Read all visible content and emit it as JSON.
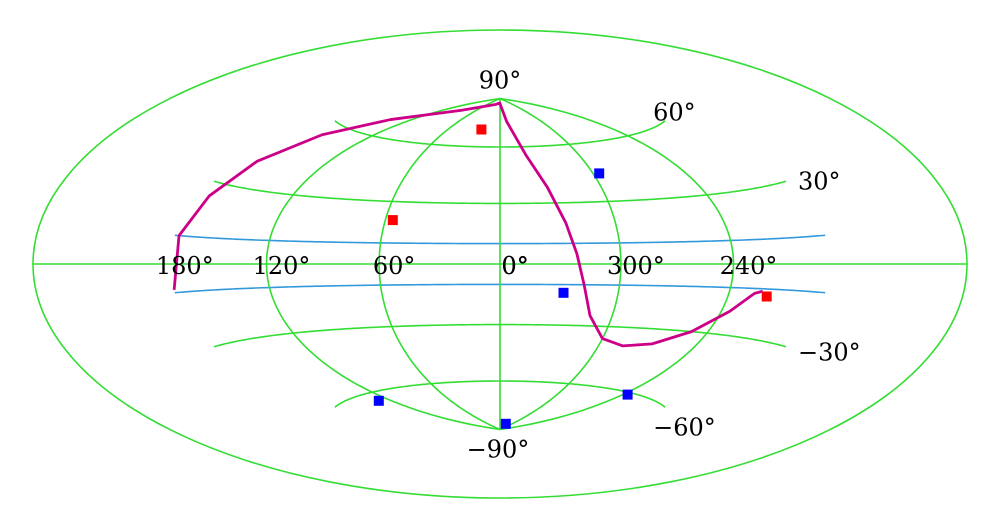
{
  "chart_data": {
    "type": "scatter",
    "projection": "hammer-aitoff",
    "longitude_direction": "increasing-leftward",
    "grid": {
      "meridians_deg": [
        0,
        60,
        120,
        180,
        240,
        300
      ],
      "parallels_deg": [
        -60,
        -30,
        30,
        60
      ],
      "color": "#33dd33"
    },
    "longitude_labels": [
      {
        "lon": 180,
        "text": "180°"
      },
      {
        "lon": 240,
        "text": "240°"
      },
      {
        "lon": 300,
        "text": "300°"
      },
      {
        "lon": 0,
        "text": "0°"
      },
      {
        "lon": 60,
        "text": "60°"
      },
      {
        "lon": 120,
        "text": "120°"
      },
      {
        "lon": -0.1,
        "text": "0°"
      }
    ],
    "latitude_labels": [
      {
        "lat": 90,
        "text": "90°"
      },
      {
        "lat": 60,
        "text": "60°"
      },
      {
        "lat": 30,
        "text": "30°"
      },
      {
        "lat": -30,
        "text": "−30°"
      },
      {
        "lat": -60,
        "text": "−60°"
      },
      {
        "lat": -90,
        "text": "−90°"
      }
    ],
    "bands": {
      "lat": [
        -10,
        10
      ],
      "color": "#3399dd"
    },
    "curve": {
      "color": "#cc0088",
      "points": [
        [
          179.8,
          -9
        ],
        [
          177,
          10
        ],
        [
          173,
          25
        ],
        [
          169,
          40
        ],
        [
          160,
          55
        ],
        [
          140,
          68
        ],
        [
          90,
          80
        ],
        [
          20,
          86
        ],
        [
          2,
          87
        ],
        [
          -10,
          75
        ],
        [
          -20,
          55
        ],
        [
          -28,
          38
        ],
        [
          -34,
          20
        ],
        [
          -38,
          5
        ],
        [
          -42,
          -10
        ],
        [
          -48,
          -25
        ],
        [
          -60,
          -36
        ],
        [
          -75,
          -39
        ],
        [
          -92,
          -37
        ],
        [
          -110,
          -30
        ],
        [
          -125,
          -20
        ],
        [
          -135,
          -12
        ],
        [
          -139.5,
          -11
        ]
      ]
    },
    "series": [
      {
        "color": "#ff0000",
        "points": [
          {
            "lon": 22,
            "lat": 70
          },
          {
            "lon": 56,
            "lat": 21
          },
          {
            "lon": -143,
            "lat": -13
          }
        ]
      },
      {
        "color": "#0000ff",
        "points": [
          {
            "lon": -64,
            "lat": 44
          },
          {
            "lon": -32,
            "lat": -14
          },
          {
            "lon": -124,
            "lat": -61
          },
          {
            "lon": 131,
            "lat": -64
          },
          {
            "lon": -30,
            "lat": -86
          }
        ]
      }
    ]
  }
}
